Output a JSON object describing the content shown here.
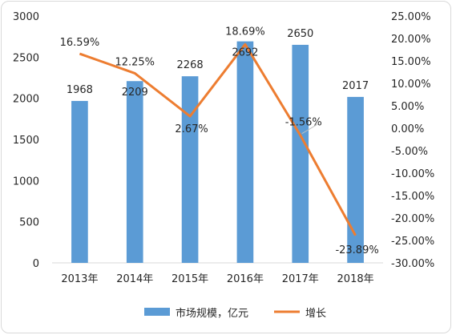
{
  "chart_data": {
    "type": "bar+line",
    "categories": [
      "2013年",
      "2014年",
      "2015年",
      "2016年",
      "2017年",
      "2018年"
    ],
    "series": [
      {
        "name": "市场规模，亿元",
        "type": "bar",
        "axis": "left",
        "color": "#5B9BD5",
        "values": [
          1968,
          2209,
          2268,
          2692,
          2650,
          2017
        ],
        "labels": [
          "1968",
          "2209",
          "2268",
          "2692",
          "2650",
          "2017"
        ]
      },
      {
        "name": "增长",
        "type": "line",
        "axis": "right",
        "color": "#ED7D31",
        "values": [
          16.59,
          12.25,
          2.67,
          18.69,
          -1.56,
          -23.89
        ],
        "labels": [
          "16.59%",
          "12.25%",
          "2.67%",
          "18.69%",
          "-1.56%",
          "-23.89%"
        ]
      }
    ],
    "y_left": {
      "min": 0,
      "max": 3000,
      "ticks": [
        "0",
        "500",
        "1000",
        "1500",
        "2000",
        "2500",
        "3000"
      ]
    },
    "y_right": {
      "min": -30,
      "max": 25,
      "ticks": [
        "-30.00%",
        "-25.00%",
        "-20.00%",
        "-15.00%",
        "-10.00%",
        "-5.00%",
        "0.00%",
        "5.00%",
        "10.00%",
        "15.00%",
        "20.00%",
        "25.00%"
      ]
    },
    "legend_position": "bottom",
    "grid": false
  }
}
